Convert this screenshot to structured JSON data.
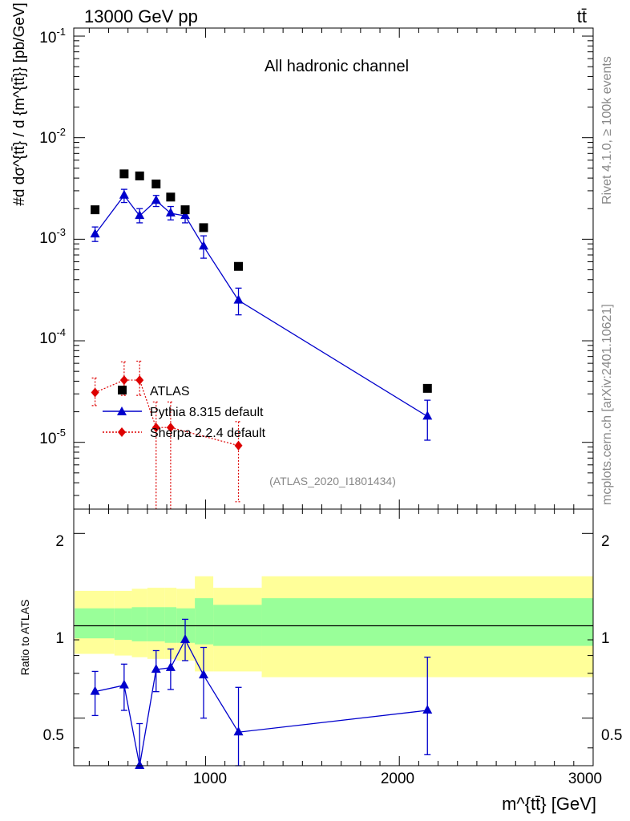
{
  "header": {
    "left_label": "13000 GeV pp",
    "right_label": "tt̄"
  },
  "side_labels": {
    "rivet": "Rivet 4.1.0, ≥ 100k events",
    "mcplots": "mcplots.cern.ch [arXiv:2401.10621]"
  },
  "main_panel": {
    "title": "All hadronic channel",
    "ylabel_num": "#d dσ^{tt̄}",
    "ylabel_full": "#d dσ^{tt̄} / d {m^{tt̄}} [pb/GeV]",
    "ylabel_den": "d {m^{tt̄}} [pb/GeV]",
    "analysis_id": "(ATLAS_2020_I1801434)",
    "y_tick_labels": [
      "10^-1",
      "10^-2",
      "10^-3",
      "10^-4",
      "10^-5"
    ]
  },
  "ratio_panel": {
    "ylabel": "Ratio to ATLAS",
    "y_tick_labels": [
      "0.5",
      "1",
      "2"
    ]
  },
  "x_axis": {
    "label": "m^{tt̄} [GeV]",
    "tick_labels": [
      "1000",
      "2000",
      "3000"
    ]
  },
  "legend": {
    "atlas": "ATLAS",
    "pythia": "Pythia 8.315 default",
    "sherpa": "Sherpa 2.2.4 default"
  },
  "colors": {
    "atlas": "#000000",
    "pythia": "#0000cc",
    "sherpa": "#dd0000",
    "band_inner": "#99ff99",
    "band_outer": "#ffff99"
  },
  "chart_data": [
    {
      "type": "scatter",
      "panel": "main",
      "title": "All hadronic channel",
      "xlabel": "m^{tt̄} [GeV]",
      "ylabel": "#d dσ^{tt̄} / d {m^{tt̄}} [pb/GeV]",
      "xlim": [
        320,
        3000
      ],
      "ylim": [
        2.2e-06,
        0.12
      ],
      "yscale": "log",
      "legend_position": "bottom-left",
      "series": [
        {
          "name": "ATLAS",
          "marker": "square",
          "x": [
            430,
            580,
            660,
            745,
            820,
            895,
            990,
            1170,
            2145
          ],
          "y": [
            0.00195,
            0.0044,
            0.0042,
            0.0035,
            0.0026,
            0.00195,
            0.0013,
            0.00054,
            3.4e-05
          ]
        },
        {
          "name": "Pythia 8.315 default",
          "marker": "triangle",
          "line": "solid",
          "x": [
            430,
            580,
            660,
            745,
            820,
            895,
            990,
            1170,
            2145
          ],
          "y": [
            0.00112,
            0.0027,
            0.0017,
            0.0024,
            0.0018,
            0.0017,
            0.00085,
            0.00025,
            1.8e-05
          ],
          "err_low": [
            0.00095,
            0.0023,
            0.00145,
            0.0021,
            0.00155,
            0.00145,
            0.00065,
            0.00018,
            1.05e-05
          ],
          "err_high": [
            0.00132,
            0.0031,
            0.002,
            0.0027,
            0.0021,
            0.002,
            0.00108,
            0.00033,
            2.6e-05
          ]
        },
        {
          "name": "Sherpa 2.2.4 default",
          "marker": "diamond",
          "line": "dotted",
          "x": [
            430,
            580,
            660,
            745,
            820,
            1170
          ],
          "y": [
            3.1e-05,
            4.1e-05,
            4.1e-05,
            1.4e-05,
            1.4e-05,
            9.3e-06
          ],
          "err_low": [
            2.3e-05,
            2.9e-05,
            2.9e-05,
            1.2e-06,
            1.2e-06,
            2.6e-06
          ],
          "err_high": [
            4.3e-05,
            6.2e-05,
            6.3e-05,
            2.5e-05,
            2.5e-05,
            1.6e-05
          ]
        }
      ]
    },
    {
      "type": "line",
      "panel": "ratio",
      "ylabel": "Ratio to ATLAS",
      "xlabel": "m^{tt̄} [GeV]",
      "xlim": [
        320,
        3000
      ],
      "ylim": [
        0.35,
        2.4
      ],
      "yscale": "log",
      "reference": 1,
      "bands": {
        "edges": [
          325,
          530,
          620,
          700,
          790,
          850,
          945,
          1040,
          1290,
          3000
        ],
        "inner_low": [
          0.91,
          0.9,
          0.89,
          0.89,
          0.88,
          0.88,
          0.87,
          0.86,
          0.86
        ],
        "inner_high": [
          1.14,
          1.14,
          1.15,
          1.15,
          1.15,
          1.14,
          1.23,
          1.17,
          1.23
        ],
        "outer_low": [
          0.81,
          0.8,
          0.79,
          0.78,
          0.78,
          0.77,
          0.71,
          0.71,
          0.68
        ],
        "outer_high": [
          1.3,
          1.3,
          1.32,
          1.33,
          1.33,
          1.32,
          1.45,
          1.33,
          1.45
        ]
      },
      "series": [
        {
          "name": "Pythia 8.315 default",
          "x": [
            430,
            580,
            660,
            745,
            820,
            895,
            990,
            1170,
            2145
          ],
          "y": [
            0.61,
            0.64,
            0.35,
            0.72,
            0.73,
            0.9,
            0.69,
            0.45,
            0.53
          ],
          "err_low": [
            0.51,
            0.53,
            0.28,
            0.61,
            0.62,
            0.77,
            0.5,
            0.33,
            0.38
          ],
          "err_high": [
            0.71,
            0.75,
            0.48,
            0.83,
            0.84,
            1.05,
            0.85,
            0.63,
            0.79
          ]
        }
      ]
    }
  ]
}
